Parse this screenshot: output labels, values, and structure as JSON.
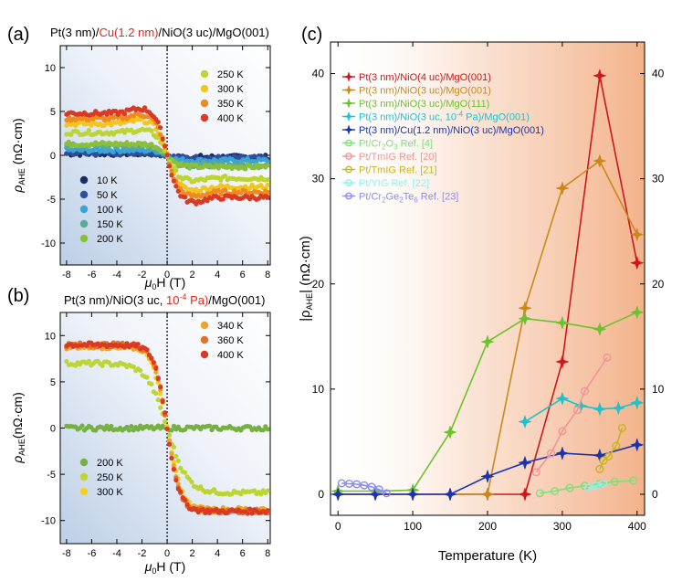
{
  "panel_a": {
    "label": "(a)",
    "title_parts": [
      {
        "text": "Pt(3 nm)/",
        "color": "#000000"
      },
      {
        "text": "Cu(1.2 nm)",
        "color": "#e0261d"
      },
      {
        "text": "/NiO(3 uc)/MgO(001)",
        "color": "#000000"
      }
    ],
    "xlabel_main": "μ",
    "xlabel_sub": "0",
    "xlabel_rest": "H (T)",
    "ylabel_main": "ρ",
    "ylabel_sub": "AHE",
    "ylabel_rest": " (nΩ·cm)"
  },
  "panel_b": {
    "label": "(b)",
    "title_parts": [
      {
        "text": "Pt(3 nm)/NiO(3 uc, ",
        "color": "#000000"
      },
      {
        "text": "10",
        "color": "#e0261d"
      },
      {
        "text": "-4",
        "color": "#e0261d",
        "sup": true
      },
      {
        "text": " Pa)",
        "color": "#e0261d"
      },
      {
        "text": "/MgO(001)",
        "color": "#000000"
      }
    ],
    "xlabel_main": "μ",
    "xlabel_sub": "0",
    "xlabel_rest": "H (T)",
    "ylabel_main": "ρ",
    "ylabel_sub": "AHE",
    "ylabel_rest": "(nΩ·cm)"
  },
  "panel_c": {
    "label": "(c)",
    "xlabel": "Temperature (K)",
    "ylabel_pre": "|ρ",
    "ylabel_sub": "AHE",
    "ylabel_post": "| (nΩ·cm)"
  },
  "chart_data": [
    {
      "type": "scatter",
      "panel": "a",
      "xlim": [
        -8.5,
        8.2
      ],
      "ylim": [
        -12.5,
        12.5
      ],
      "xticks": [
        -8,
        -6,
        -4,
        -2,
        0,
        2,
        4,
        6,
        8
      ],
      "yticks": [
        -10,
        -5,
        0,
        5,
        10
      ],
      "series": [
        {
          "name": "10 K",
          "color": "#1c2a63",
          "sat": 0.2,
          "w": 0.7,
          "legend": "left"
        },
        {
          "name": "50 K",
          "color": "#2f4f9a",
          "sat": 0.3,
          "w": 0.7,
          "legend": "left"
        },
        {
          "name": "100 K",
          "color": "#3aa3d8",
          "sat": 0.6,
          "w": 0.7,
          "legend": "left"
        },
        {
          "name": "150 K",
          "color": "#5aa89a",
          "sat": 1.1,
          "w": 0.8,
          "legend": "left"
        },
        {
          "name": "200 K",
          "color": "#8bbf3a",
          "sat": 1.3,
          "w": 0.9,
          "legend": "left"
        },
        {
          "name": "250 K",
          "color": "#bcd534",
          "sat": 2.6,
          "w": 0.8,
          "legend": "right"
        },
        {
          "name": "300 K",
          "color": "#f2c51f",
          "sat": 3.6,
          "w": 0.8,
          "legend": "right"
        },
        {
          "name": "350 K",
          "color": "#ef8a1f",
          "sat": 4.2,
          "w": 0.8,
          "legend": "right"
        },
        {
          "name": "400 K",
          "color": "#d93a23",
          "sat": 4.8,
          "w": 0.8,
          "legend": "right"
        }
      ]
    },
    {
      "type": "scatter",
      "panel": "b",
      "xlim": [
        -8.5,
        8.2
      ],
      "ylim": [
        -12.5,
        12.5
      ],
      "xticks": [
        -8,
        -6,
        -4,
        -2,
        0,
        2,
        4,
        6,
        8
      ],
      "yticks": [
        -10,
        -5,
        0,
        5,
        10
      ],
      "series": [
        {
          "name": "200 K",
          "color": "#76b043",
          "sat": 0.0,
          "w": 1.0,
          "legend": "left"
        },
        {
          "name": "250 K",
          "color": "#bcd534",
          "sat": 7.0,
          "w": 1.6,
          "legend": "left"
        },
        {
          "name": "300 K",
          "color": "#f7cf1c",
          "sat": 9.0,
          "w": 1.2,
          "legend": "left"
        },
        {
          "name": "340 K",
          "color": "#f0a22a",
          "sat": 8.8,
          "w": 1.0,
          "legend": "right"
        },
        {
          "name": "360 K",
          "color": "#e2702a",
          "sat": 9.0,
          "w": 1.0,
          "legend": "right"
        },
        {
          "name": "400 K",
          "color": "#d93a23",
          "sat": 9.0,
          "w": 1.0,
          "legend": "right"
        }
      ]
    },
    {
      "type": "line",
      "panel": "c",
      "xlim": [
        -10,
        410
      ],
      "ylim": [
        -2,
        43
      ],
      "xticks": [
        0,
        100,
        200,
        300,
        400
      ],
      "yticks": [
        0,
        10,
        20,
        30,
        40
      ],
      "series": [
        {
          "name": "Pt(3 nm)/NiO(4 uc)/MgO(001)",
          "color": "#d0161d",
          "marker": "star",
          "x": [
            0,
            50,
            100,
            150,
            200,
            250,
            300,
            350,
            400
          ],
          "y": [
            0,
            0,
            0,
            0,
            0,
            0,
            12.6,
            39.8,
            22
          ]
        },
        {
          "name": "Pt(3 nm)/NiO(3 uc)/MgO(001)",
          "color": "#c9891a",
          "marker": "star",
          "x": [
            0,
            50,
            100,
            150,
            200,
            250,
            300,
            350,
            400
          ],
          "y": [
            0,
            0,
            0,
            0,
            0,
            17.7,
            29.1,
            31.7,
            24.7
          ]
        },
        {
          "name": "Pt(3 nm)/NiO(3 uc)/MgO(111)",
          "color": "#6cc22c",
          "marker": "star",
          "x": [
            0,
            50,
            100,
            150,
            200,
            250,
            300,
            350,
            400
          ],
          "y": [
            0.3,
            0.3,
            0.4,
            5.9,
            14.5,
            16.7,
            16.3,
            15.7,
            17.3
          ]
        },
        {
          "name": "Pt(3 nm)/NiO(3 uc, 10-4 Pa)/MgO(001)",
          "color": "#20c1c9",
          "marker": "star",
          "x": [
            250,
            300,
            325,
            350,
            375,
            400
          ],
          "y": [
            6.9,
            9.1,
            8.4,
            8.1,
            8.2,
            8.7
          ]
        },
        {
          "name": "Pt(3 nm)/Cu(1.2 nm)/NiO(3 uc)/MgO(001)",
          "color": "#1a34b0",
          "marker": "star",
          "x": [
            0,
            50,
            100,
            150,
            200,
            250,
            300,
            350,
            400
          ],
          "y": [
            0,
            0,
            0,
            0,
            1.7,
            3,
            3.9,
            3.7,
            4.7
          ]
        },
        {
          "name": "Pt/Cr2O3 Ref. [4]",
          "color": "#7be07b",
          "marker": "circle",
          "x": [
            270,
            290,
            310,
            330,
            350,
            370,
            395
          ],
          "y": [
            0.1,
            0.3,
            0.6,
            0.8,
            1.0,
            1.2,
            1.3
          ]
        },
        {
          "name": "Pt/TmIG Ref. [20]",
          "color": "#f09595",
          "marker": "circle",
          "x": [
            265,
            285,
            300,
            320,
            330,
            360
          ],
          "y": [
            2.1,
            3.9,
            6.0,
            8.0,
            9.8,
            13.0
          ]
        },
        {
          "name": "Pt/TmIG Ref. [21]",
          "color": "#c8b41e",
          "marker": "circle",
          "x": [
            350,
            355,
            362,
            372,
            380
          ],
          "y": [
            2.4,
            3.2,
            3.6,
            4.6,
            6.3
          ]
        },
        {
          "name": "Pt/YIG Ref. [22]",
          "color": "#8ff0f0",
          "marker": "circle",
          "x": [
            335,
            345,
            355
          ],
          "y": [
            0.6,
            0.8,
            1.0
          ]
        },
        {
          "name": "Pt/Cr2Ge2Te6 Ref. [23]",
          "color": "#8a8cf0",
          "marker": "circle",
          "x": [
            5,
            15,
            25,
            35,
            45,
            55,
            65
          ],
          "y": [
            1.05,
            1.0,
            0.95,
            0.85,
            0.7,
            0.45,
            0.1
          ]
        }
      ],
      "legend": [
        {
          "text": "Pt(3 nm)/NiO(4 uc)/MgO(001)",
          "color": "#d0161d",
          "marker": "star"
        },
        {
          "text": "Pt(3 nm)/NiO(3 uc)/MgO(001)",
          "color": "#c9891a",
          "marker": "star"
        },
        {
          "text": "Pt(3 nm)/NiO(3 uc)/MgO(111)",
          "color": "#6cc22c",
          "marker": "star"
        },
        {
          "text": "Pt(3 nm)/NiO(3 uc, 10",
          "sup": "-4",
          "tail": " Pa)/MgO(001)",
          "color": "#20c1c9",
          "marker": "star"
        },
        {
          "text": "Pt(3 nm)/Cu(1.2 nm)/NiO(3 uc)/MgO(001)",
          "color": "#1a34b0",
          "marker": "star"
        },
        {
          "text": "Pt/Cr",
          "sub": "2",
          "mid": "O",
          "sub2": "3",
          "tail": " Ref. [4]",
          "color": "#7be07b",
          "marker": "circle"
        },
        {
          "text": "Pt/TmIG Ref. [20]",
          "color": "#f09595",
          "marker": "circle"
        },
        {
          "text": "Pt/TmIG Ref. [21]",
          "color": "#c8b41e",
          "marker": "circle"
        },
        {
          "text": "Pt/YIG Ref. [22]",
          "color": "#8ff0f0",
          "marker": "circle"
        },
        {
          "text": "Pt/Cr",
          "sub": "2",
          "mid": "Ge",
          "sub2": "2",
          "mid2": "Te",
          "sub3": "6",
          "tail": " Ref. [23]",
          "color": "#8a8cf0",
          "marker": "circle"
        }
      ]
    }
  ]
}
